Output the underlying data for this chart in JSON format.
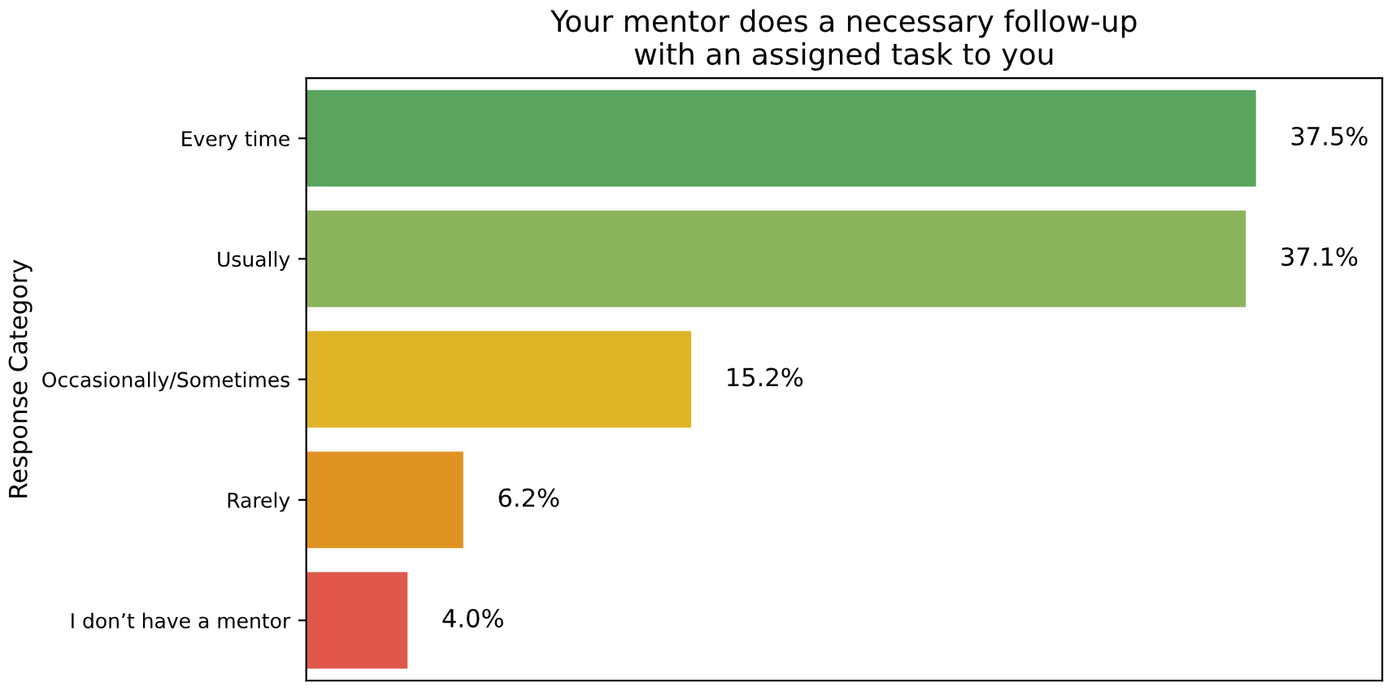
{
  "chart_data": {
    "type": "bar",
    "orientation": "horizontal",
    "title": "Your mentor does a necessary follow-up\nwith an assigned task to you",
    "ylabel": "Response Category",
    "categories": [
      "Every time",
      "Usually",
      "Occasionally/Sometimes",
      "Rarely",
      "I don’t have a mentor"
    ],
    "values": [
      37.5,
      37.1,
      15.2,
      6.2,
      4.0
    ],
    "colors": [
      "#59a35e",
      "#8bb45b",
      "#e0b428",
      "#e09322",
      "#e0584c"
    ],
    "value_labels": [
      "37.5%",
      "37.1%",
      "15.2%",
      "6.2%",
      "4.0%"
    ],
    "tick_labels": "y",
    "grid": false,
    "legend": false
  }
}
